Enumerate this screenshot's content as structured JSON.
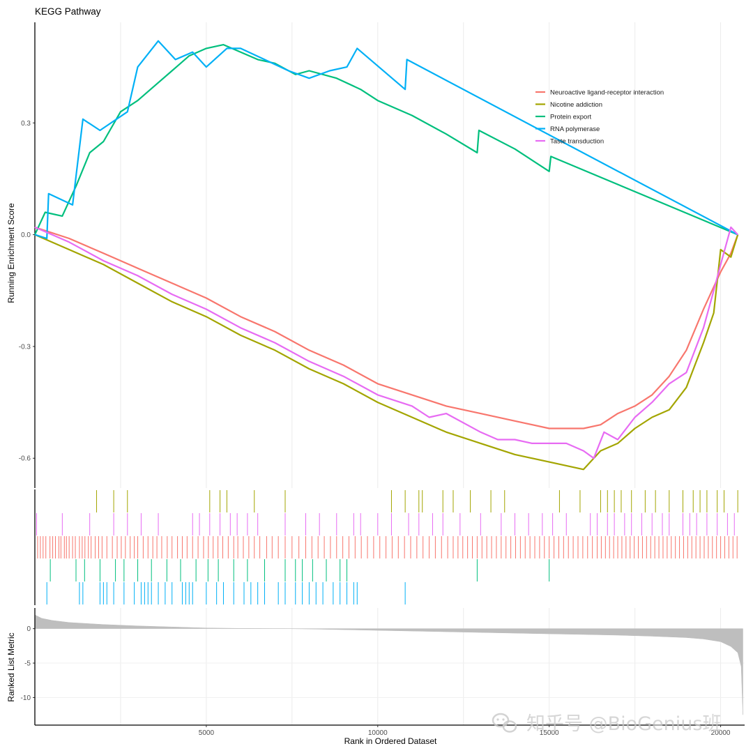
{
  "chart_data": {
    "type": "line",
    "title": "KEGG Pathway",
    "ylabel_es": "Running Enrichment Score",
    "ylabel_metric": "Ranked List Metric",
    "xlabel": "Rank in Ordered Dataset",
    "xlim": [
      0,
      20700
    ],
    "xticks": [
      5000,
      10000,
      15000,
      20000
    ],
    "xtick_labels": [
      "5000",
      "10000",
      "15000",
      "20000"
    ],
    "es_ylim": [
      -0.68,
      0.57
    ],
    "es_yticks": [
      0.3,
      0.0,
      -0.3,
      -0.6
    ],
    "es_ytick_labels": [
      "0.3",
      "0.0",
      "-0.3",
      "-0.6"
    ],
    "metric_ylim": [
      -14,
      3
    ],
    "metric_yticks": [
      0,
      -5,
      -10
    ],
    "metric_ytick_labels": [
      "0",
      "-5",
      "-10"
    ],
    "grid": true,
    "legend_position": "top-right",
    "series": [
      {
        "name": "Neuroactive ligand-receptor interaction",
        "color": "#F8766D",
        "x": [
          0,
          1000,
          2000,
          3000,
          4000,
          5000,
          6000,
          7000,
          8000,
          9000,
          10000,
          11000,
          12000,
          13000,
          14000,
          15000,
          16000,
          16500,
          17000,
          17500,
          18000,
          18500,
          19000,
          19500,
          20000,
          20300,
          20500
        ],
        "y": [
          0.02,
          -0.01,
          -0.05,
          -0.09,
          -0.13,
          -0.17,
          -0.22,
          -0.26,
          -0.31,
          -0.35,
          -0.4,
          -0.43,
          -0.46,
          -0.48,
          -0.5,
          -0.52,
          -0.52,
          -0.51,
          -0.48,
          -0.46,
          -0.43,
          -0.38,
          -0.31,
          -0.2,
          -0.1,
          -0.05,
          0.0
        ],
        "hits": [
          80,
          160,
          240,
          320,
          440,
          520,
          600,
          700,
          760,
          860,
          920,
          1000,
          1100,
          1180,
          1300,
          1380,
          1460,
          1560,
          1640,
          1760,
          1860,
          1960,
          2100,
          2260,
          2400,
          2520,
          2640,
          2780,
          2900,
          3000,
          3160,
          3300,
          3440,
          3560,
          3700,
          3860,
          4000,
          4160,
          4300,
          4440,
          4600,
          4760,
          4920,
          5060,
          5200,
          5340,
          5480,
          5640,
          5800,
          5920,
          6080,
          6240,
          6400,
          6560,
          6760,
          6920,
          7100,
          7300,
          7500,
          7700,
          7900,
          8080,
          8260,
          8440,
          8620,
          8800,
          8980,
          9160,
          9340,
          9520,
          9700,
          9880,
          10060,
          10240,
          10420,
          10600,
          10780,
          10960,
          11140,
          11320,
          11500,
          11680,
          11860,
          12040,
          12200,
          12340,
          12480,
          12620,
          12760,
          12900,
          13040,
          13180,
          13320,
          13460,
          13600,
          13740,
          13880,
          14020,
          14160,
          14300,
          14440,
          14580,
          14720,
          14860,
          15000,
          15140,
          15280,
          15420,
          15560,
          15700,
          15840,
          15980,
          16120,
          16260,
          16400,
          16520,
          16640,
          16760,
          16880,
          17000,
          17120,
          17240,
          17360,
          17480,
          17600,
          17720,
          17840,
          17960,
          18080,
          18200,
          18320,
          18440,
          18560,
          18680,
          18800,
          18920,
          19040,
          19160,
          19280,
          19400,
          19520,
          19640,
          19760,
          19880,
          20000,
          20120,
          20240,
          20360,
          20480
        ]
      },
      {
        "name": "Nicotine addiction",
        "color": "#A3A500",
        "x": [
          0,
          1000,
          2000,
          3000,
          4000,
          5000,
          6000,
          7000,
          8000,
          9000,
          10000,
          11000,
          12000,
          13000,
          14000,
          15000,
          16000,
          16500,
          17000,
          17500,
          18000,
          18500,
          19000,
          19500,
          19800,
          20000,
          20300,
          20500
        ],
        "y": [
          0.0,
          -0.04,
          -0.08,
          -0.13,
          -0.18,
          -0.22,
          -0.27,
          -0.31,
          -0.36,
          -0.4,
          -0.45,
          -0.49,
          -0.53,
          -0.56,
          -0.59,
          -0.61,
          -0.63,
          -0.58,
          -0.56,
          -0.52,
          -0.49,
          -0.47,
          -0.41,
          -0.29,
          -0.21,
          -0.04,
          -0.06,
          0.0
        ],
        "hits": [
          1800,
          2300,
          2700,
          5100,
          5400,
          5600,
          6400,
          7300,
          10400,
          10800,
          11200,
          11300,
          11900,
          12200,
          12700,
          13300,
          13700,
          15300,
          15900,
          16500,
          16700,
          16900,
          17100,
          17400,
          17800,
          18100,
          18500,
          18900,
          19200,
          19400,
          19600,
          19900,
          20100,
          20500
        ]
      },
      {
        "name": "Protein export",
        "color": "#00BF7D",
        "x": [
          0,
          300,
          800,
          1200,
          1600,
          2000,
          2500,
          3000,
          3500,
          4000,
          4500,
          5000,
          5500,
          6000,
          6500,
          7000,
          7600,
          8000,
          8800,
          9500,
          10000,
          11000,
          12000,
          12900,
          12950,
          14000,
          15000,
          15050,
          20500
        ],
        "y": [
          0.0,
          0.06,
          0.05,
          0.13,
          0.22,
          0.25,
          0.33,
          0.36,
          0.4,
          0.44,
          0.48,
          0.5,
          0.51,
          0.49,
          0.47,
          0.46,
          0.43,
          0.44,
          0.42,
          0.39,
          0.36,
          0.32,
          0.27,
          0.22,
          0.28,
          0.23,
          0.17,
          0.21,
          0.0
        ],
        "hits": [
          450,
          1200,
          1450,
          1900,
          2350,
          2600,
          3000,
          3400,
          3850,
          4250,
          4700,
          5050,
          5350,
          5800,
          6200,
          6700,
          7300,
          7600,
          7800,
          8100,
          8500,
          8900,
          9100,
          12900,
          15000
        ]
      },
      {
        "name": "RNA polymerase",
        "color": "#00B0F6",
        "x": [
          0,
          350,
          400,
          1100,
          1400,
          1900,
          2700,
          3000,
          3600,
          4100,
          4600,
          5000,
          5600,
          6000,
          6700,
          7400,
          8000,
          8600,
          9100,
          9400,
          10800,
          10850,
          20500
        ],
        "y": [
          0.0,
          -0.01,
          0.11,
          0.08,
          0.31,
          0.28,
          0.33,
          0.45,
          0.52,
          0.47,
          0.49,
          0.45,
          0.5,
          0.5,
          0.47,
          0.44,
          0.42,
          0.44,
          0.45,
          0.5,
          0.39,
          0.47,
          0.0
        ],
        "hits": [
          350,
          1300,
          1400,
          1900,
          2000,
          2100,
          2300,
          2600,
          2900,
          3100,
          3200,
          3300,
          3400,
          3600,
          3800,
          4000,
          4300,
          4400,
          4500,
          4600,
          5000,
          5300,
          5500,
          5800,
          6100,
          6300,
          6500,
          6700,
          7100,
          7300,
          7600,
          7800,
          8000,
          8200,
          8400,
          8700,
          8900,
          9100,
          9300,
          9400,
          10800
        ]
      },
      {
        "name": "Taste transduction",
        "color": "#E76BF3",
        "x": [
          0,
          1000,
          2000,
          3000,
          4000,
          5000,
          6000,
          7000,
          8000,
          9000,
          10000,
          11000,
          11500,
          12000,
          13000,
          13500,
          14000,
          14500,
          15000,
          15500,
          16000,
          16300,
          16600,
          17000,
          17500,
          18000,
          18500,
          19000,
          19500,
          19800,
          20000,
          20300,
          20500
        ],
        "y": [
          0.02,
          -0.02,
          -0.07,
          -0.11,
          -0.16,
          -0.2,
          -0.25,
          -0.29,
          -0.34,
          -0.38,
          -0.43,
          -0.46,
          -0.49,
          -0.48,
          -0.53,
          -0.55,
          -0.55,
          -0.56,
          -0.56,
          -0.56,
          -0.58,
          -0.6,
          -0.53,
          -0.55,
          -0.49,
          -0.45,
          -0.4,
          -0.37,
          -0.25,
          -0.15,
          -0.08,
          0.02,
          0.0
        ],
        "hits": [
          50,
          800,
          1600,
          2300,
          2700,
          3100,
          3600,
          4600,
          4800,
          5100,
          5400,
          5700,
          5900,
          6200,
          6500,
          7300,
          7900,
          8300,
          8800,
          9300,
          9500,
          10000,
          10400,
          10900,
          11200,
          11600,
          11900,
          12400,
          13000,
          13600,
          14000,
          14400,
          14800,
          15100,
          15500,
          16200,
          16400,
          16700,
          16900,
          17200,
          17400,
          17700,
          18000,
          18300,
          18500,
          18900,
          19100,
          19300,
          19600,
          19900,
          20200,
          20400
        ]
      }
    ],
    "ranked_metric": {
      "x": [
        0,
        200,
        500,
        1000,
        2000,
        3000,
        4000,
        5000,
        6000,
        7000,
        7200,
        8000,
        9000,
        10000,
        11000,
        12000,
        13000,
        14000,
        15000,
        16000,
        17000,
        18000,
        19000,
        19500,
        20000,
        20300,
        20500,
        20600,
        20650
      ],
      "y": [
        2.0,
        1.5,
        1.2,
        0.9,
        0.6,
        0.4,
        0.25,
        0.1,
        0.04,
        0.0,
        0.0,
        -0.05,
        -0.15,
        -0.25,
        -0.35,
        -0.45,
        -0.55,
        -0.65,
        -0.75,
        -0.85,
        -0.95,
        -1.1,
        -1.3,
        -1.5,
        -1.9,
        -2.6,
        -3.5,
        -5.5,
        -12.5
      ]
    }
  },
  "watermark": {
    "text": "知乎号 @BioGenius班",
    "icon": "wechat-logo-icon"
  }
}
